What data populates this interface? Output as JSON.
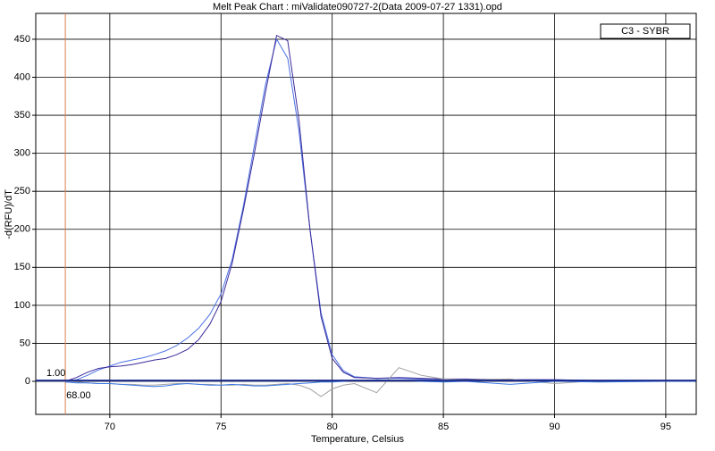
{
  "chart_data": {
    "type": "line",
    "title": "Melt Peak Chart : miValidate090727-2(Data 2009-07-27 1331).opd",
    "x_label": "Temperature, Celsius",
    "y_label": "-d(RFU)/dT",
    "legend_label": "C3 - SYBR",
    "legend_position": "top-right",
    "grid": true,
    "xlim": [
      66.67,
      96.37
    ],
    "ylim": [
      -43.5,
      484
    ],
    "xticks": [
      70,
      75,
      80,
      85,
      90,
      95
    ],
    "yticks": [
      0,
      50,
      100,
      150,
      200,
      250,
      300,
      350,
      400,
      450
    ],
    "threshold": {
      "value": 1,
      "label": "1.00",
      "color": "#1a2a8a"
    },
    "marker": {
      "value": 68,
      "label": "68.00",
      "color": "#d9804a"
    },
    "x": [
      68,
      68.5,
      69,
      69.5,
      70,
      70.5,
      71,
      71.5,
      72,
      72.5,
      73,
      73.5,
      74,
      74.5,
      75,
      75.5,
      76,
      76.5,
      77,
      77.5,
      78,
      78.5,
      79,
      79.5,
      80,
      80.5,
      81,
      82,
      83,
      84,
      85,
      86,
      88,
      90,
      92,
      95,
      96.3
    ],
    "series": [
      {
        "color": "#4a6fe3",
        "values": [
          0,
          2,
          8,
          15,
          20,
          25,
          28,
          31,
          35,
          40,
          47,
          57,
          70,
          88,
          115,
          160,
          230,
          310,
          390,
          450,
          425,
          330,
          200,
          90,
          35,
          14,
          6,
          4,
          4,
          3,
          3,
          2,
          2,
          2,
          1,
          0,
          0
        ]
      },
      {
        "color": "#3a2a9a",
        "values": [
          0,
          5,
          12,
          17,
          19,
          20,
          22,
          25,
          28,
          30,
          35,
          42,
          55,
          75,
          105,
          155,
          225,
          300,
          380,
          455,
          448,
          345,
          200,
          85,
          30,
          12,
          5,
          4,
          5,
          4,
          3,
          3,
          2,
          2,
          1,
          0,
          0
        ]
      },
      {
        "color": "#a0a0a0",
        "values": [
          0,
          -1,
          -2,
          -3,
          -3,
          -4,
          -4,
          -5,
          -5,
          -4,
          -3,
          -3,
          -4,
          -4,
          -5,
          -5,
          -4,
          -5,
          -5,
          -4,
          -3,
          -5,
          -10,
          -20,
          -10,
          -5,
          -3,
          -15,
          18,
          8,
          3,
          2,
          3,
          -3,
          1,
          0,
          0
        ]
      },
      {
        "color": "#3a7ae8",
        "values": [
          -1,
          -2,
          -2,
          -3,
          -3,
          -4,
          -5,
          -6,
          -7,
          -6,
          -4,
          -3,
          -4,
          -5,
          -5,
          -4,
          -5,
          -6,
          -6,
          -5,
          -4,
          -3,
          -2,
          -1,
          -1,
          0,
          1,
          2,
          1,
          0,
          -1,
          0,
          -4,
          0,
          -1,
          0,
          0
        ]
      }
    ]
  }
}
